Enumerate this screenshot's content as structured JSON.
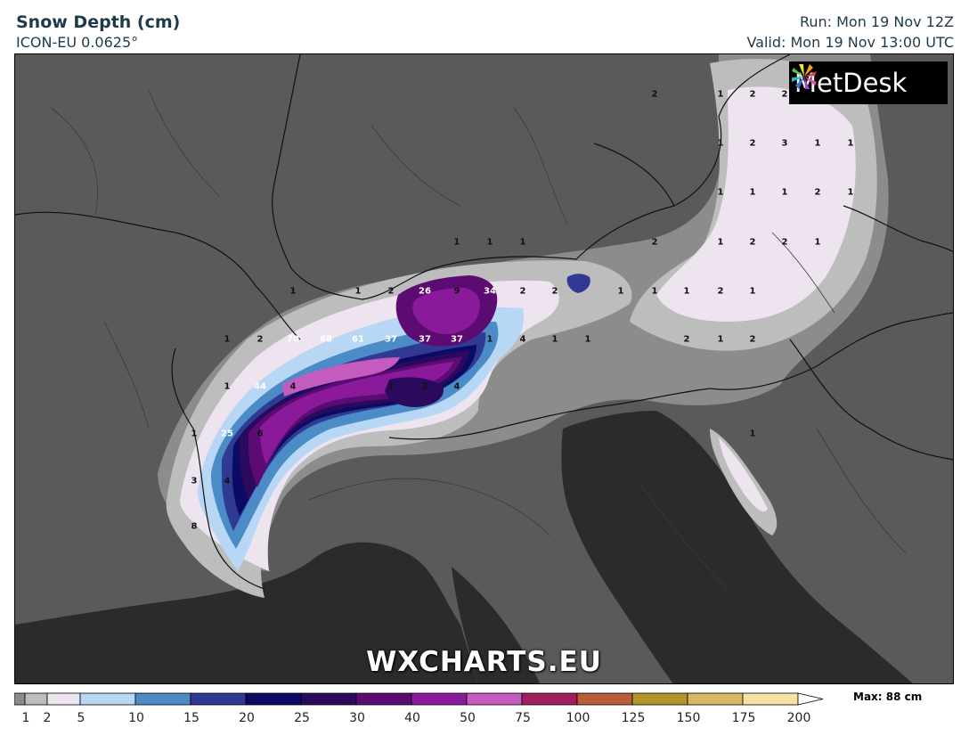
{
  "header": {
    "title": "Snow Depth (cm)",
    "model": "ICON-EU 0.0625°",
    "run": "Run: Mon 19 Nov 12Z",
    "valid": "Valid: Mon 19 Nov 13:00 UTC"
  },
  "logo": {
    "text": "MetDesk"
  },
  "watermark": "WXCHARTS.EU",
  "colorbar": {
    "max_label": "Max: 88 cm",
    "ticks": [
      "1",
      "2",
      "5",
      "10",
      "15",
      "20",
      "25",
      "30",
      "40",
      "50",
      "75",
      "100",
      "125",
      "150",
      "175",
      "200"
    ],
    "colors": [
      "#8c8c8c",
      "#bdbdbd",
      "#ede4ef",
      "#b7d7f5",
      "#4b8bc6",
      "#313a93",
      "#0b0b66",
      "#2b0a5e",
      "#5c0b73",
      "#8a1a9a",
      "#c45cc0",
      "#a0205e",
      "#b85c3a",
      "#b2952b",
      "#d7b864",
      "#f6e2a2"
    ]
  },
  "map": {
    "colors": {
      "land": "#5a5a5a",
      "sea": "#2b2b2b",
      "trace": "#8c8c8c",
      "light": "#bdbdbd",
      "snow_2_5": "#ede4ef",
      "snow_5_10": "#b7d7f5",
      "snow_10_15": "#4b8bc6",
      "snow_15_20": "#313a93",
      "snow_20_25": "#0b0b66",
      "snow_25_30": "#2b0a5e",
      "snow_30_40": "#5c0b73",
      "snow_40_50": "#8a1a9a",
      "snow_50_75": "#c45cc0"
    },
    "labels": [
      {
        "v": "2"
      },
      {
        "v": "1"
      },
      {
        "v": "2"
      },
      {
        "v": "2"
      },
      {
        "v": "1"
      },
      {
        "v": "2"
      },
      {
        "v": "3"
      },
      {
        "v": "1"
      },
      {
        "v": "1"
      },
      {
        "v": "1"
      },
      {
        "v": "1"
      },
      {
        "v": "1"
      },
      {
        "v": "2"
      },
      {
        "v": "1"
      },
      {
        "v": "1"
      },
      {
        "v": "1"
      },
      {
        "v": "1"
      },
      {
        "v": "2"
      },
      {
        "v": "1"
      },
      {
        "v": "2"
      },
      {
        "v": "2"
      },
      {
        "v": "1"
      },
      {
        "v": "1"
      },
      {
        "v": "1"
      },
      {
        "v": "2"
      },
      {
        "v": "26",
        "w": true
      },
      {
        "v": "9"
      },
      {
        "v": "34",
        "w": true
      },
      {
        "v": "2"
      },
      {
        "v": "2"
      },
      {
        "v": "1"
      },
      {
        "v": "1"
      },
      {
        "v": "1"
      },
      {
        "v": "2"
      },
      {
        "v": "1"
      },
      {
        "v": "1"
      },
      {
        "v": "2"
      },
      {
        "v": "70",
        "w": true
      },
      {
        "v": "68",
        "w": true
      },
      {
        "v": "61",
        "w": true
      },
      {
        "v": "37",
        "w": true
      },
      {
        "v": "37",
        "w": true
      },
      {
        "v": "37",
        "w": true
      },
      {
        "v": "1"
      },
      {
        "v": "4"
      },
      {
        "v": "1"
      },
      {
        "v": "1"
      },
      {
        "v": "2"
      },
      {
        "v": "1"
      },
      {
        "v": "2"
      },
      {
        "v": "1"
      },
      {
        "v": "44",
        "w": true
      },
      {
        "v": "4"
      },
      {
        "v": "1"
      },
      {
        "v": "2"
      },
      {
        "v": "4"
      },
      {
        "v": "1"
      },
      {
        "v": "25",
        "w": true
      },
      {
        "v": "6"
      },
      {
        "v": "1"
      },
      {
        "v": "3"
      },
      {
        "v": "4"
      },
      {
        "v": "8"
      }
    ]
  }
}
